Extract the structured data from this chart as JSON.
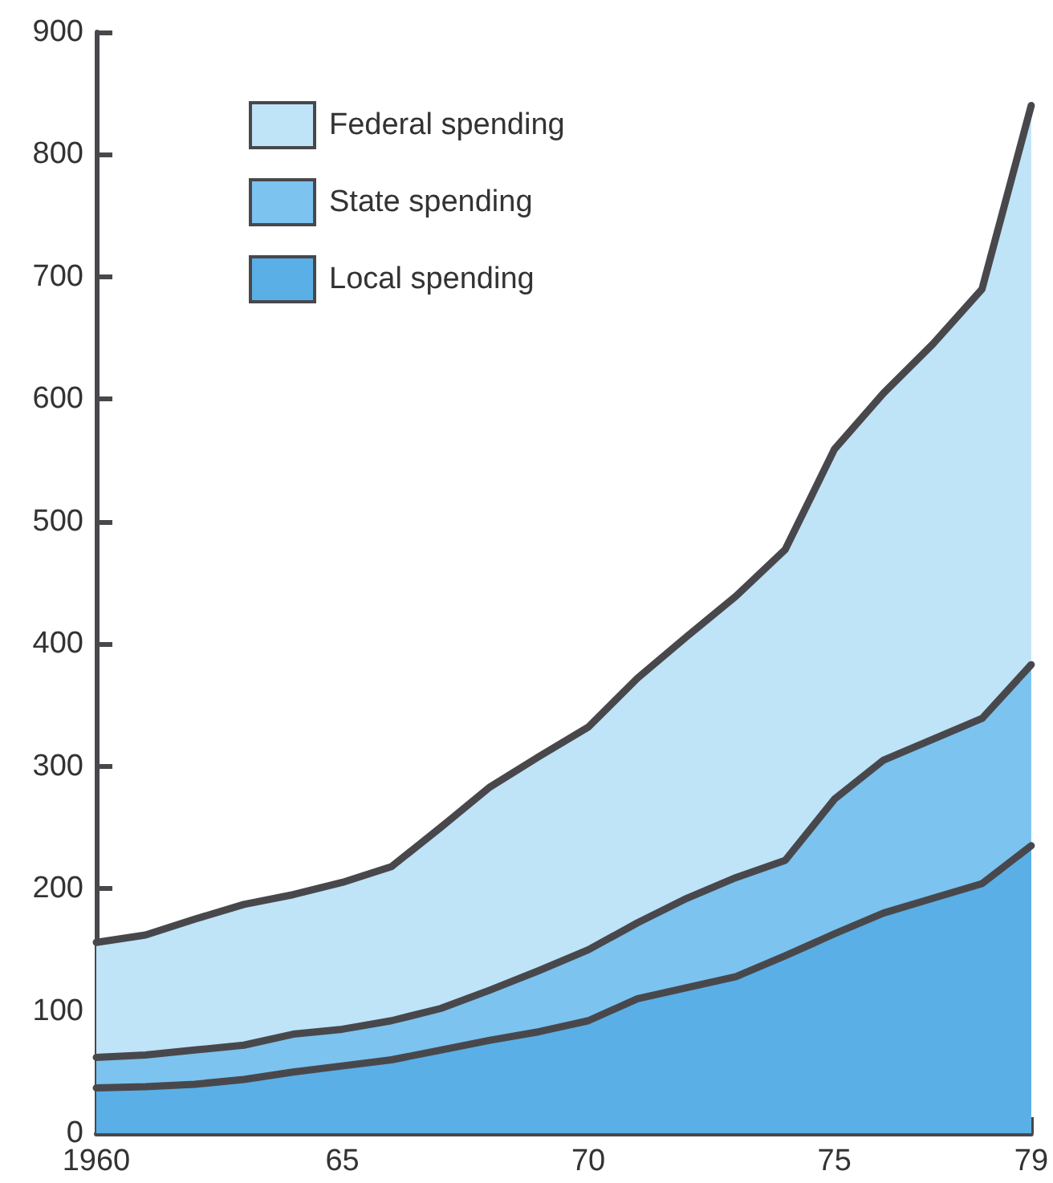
{
  "chart_data": {
    "type": "area",
    "stacked": true,
    "legend": "top left",
    "marker": "none",
    "x": [
      1960,
      1961,
      1962,
      1963,
      1964,
      1965,
      1966,
      1967,
      1968,
      1969,
      1970,
      1971,
      1972,
      1973,
      1974,
      1975,
      1976,
      1977,
      1978,
      1979
    ],
    "series": [
      {
        "name": "Local spending",
        "color": "#5aafe6",
        "values": [
          37,
          38,
          40,
          44,
          50,
          55,
          60,
          68,
          76,
          83,
          92,
          110,
          119,
          128,
          145,
          163,
          180,
          192,
          204,
          235
        ]
      },
      {
        "name": "State spending",
        "color": "#7cc3ef",
        "values": [
          25,
          26,
          28,
          28,
          31,
          30,
          32,
          34,
          41,
          50,
          58,
          62,
          73,
          81,
          78,
          110,
          125,
          130,
          135,
          148
        ]
      },
      {
        "name": "Federal spending",
        "color": "#bfe3f7",
        "values": [
          94,
          98,
          107,
          115,
          114,
          120,
          126,
          148,
          166,
          175,
          182,
          200,
          214,
          230,
          254,
          286,
          300,
          323,
          351,
          457
        ]
      }
    ],
    "xlim": [
      1960,
      1979
    ],
    "xticks": [
      {
        "value": 1960,
        "label": "1960"
      },
      {
        "value": 1961,
        "label": null
      },
      {
        "value": 1962,
        "label": null
      },
      {
        "value": 1963,
        "label": null
      },
      {
        "value": 1964,
        "label": null
      },
      {
        "value": 1965,
        "label": "65"
      },
      {
        "value": 1966,
        "label": null
      },
      {
        "value": 1967,
        "label": null
      },
      {
        "value": 1968,
        "label": null
      },
      {
        "value": 1969,
        "label": null
      },
      {
        "value": 1970,
        "label": "70"
      },
      {
        "value": 1971,
        "label": null
      },
      {
        "value": 1972,
        "label": null
      },
      {
        "value": 1973,
        "label": null
      },
      {
        "value": 1974,
        "label": null
      },
      {
        "value": 1975,
        "label": "75"
      },
      {
        "value": 1976,
        "label": null
      },
      {
        "value": 1977,
        "label": null
      },
      {
        "value": 1978,
        "label": null
      },
      {
        "value": 1979,
        "label": "79"
      }
    ],
    "ylim": [
      0,
      900
    ],
    "yticks": [
      0,
      100,
      200,
      300,
      400,
      500,
      600,
      700,
      800,
      900
    ],
    "grid": false
  }
}
